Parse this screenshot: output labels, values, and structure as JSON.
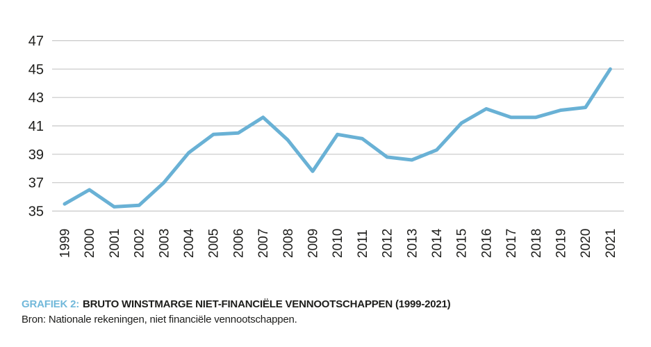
{
  "chart_data": {
    "type": "line",
    "title": "BRUTO WINSTMARGE NIET-FINANCIËLE VENNOOTSCHAPPEN (1999-2021)",
    "caption_label": "GRAFIEK 2:",
    "source": "Bron: Nationale rekeningen, niet financiële vennootschappen.",
    "series_name": "Bruto winstmarge niet-financiële vennootschappen",
    "x": [
      1999,
      2000,
      2001,
      2002,
      2003,
      2004,
      2005,
      2006,
      2007,
      2008,
      2009,
      2010,
      2011,
      2012,
      2013,
      2014,
      2015,
      2016,
      2017,
      2018,
      2019,
      2020,
      2021
    ],
    "values": [
      35.5,
      36.5,
      35.3,
      35.4,
      37.0,
      39.1,
      40.4,
      40.5,
      41.6,
      40.0,
      37.8,
      40.4,
      40.1,
      38.8,
      38.6,
      39.3,
      41.2,
      42.2,
      41.6,
      41.6,
      42.1,
      42.3,
      45.0
    ],
    "xlabel": "",
    "ylabel": "",
    "ylim": [
      35,
      47
    ],
    "yticks": [
      35,
      37,
      39,
      41,
      43,
      45,
      47
    ],
    "grid": true,
    "legend": "none",
    "x_tick_rotation": -90
  },
  "colors": {
    "line": "#69b1d5",
    "accent": "#71b8da",
    "grid": "#c7c7c7",
    "text": "#1d1d1b"
  }
}
